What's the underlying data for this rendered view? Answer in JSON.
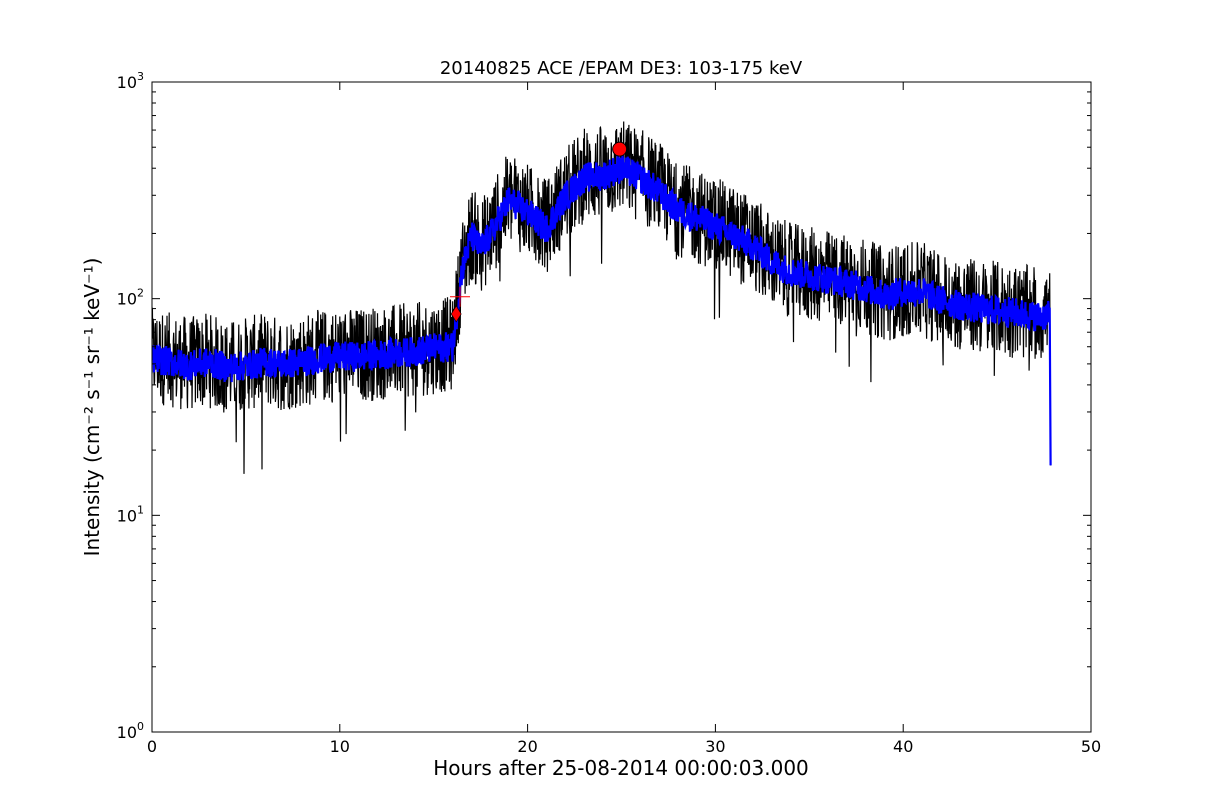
{
  "chart_data": {
    "type": "line",
    "title": "20140825 ACE /EPAM DE3: 103-175 keV",
    "xlabel": "Hours after 25-08-2014 00:00:03.000",
    "ylabel": "Intensity (cm⁻² s⁻¹ sr⁻¹ keV⁻¹)",
    "xlim": [
      0,
      50
    ],
    "ylim": [
      1,
      1000
    ],
    "yscale": "log",
    "grid": false,
    "x_ticks": [
      "0",
      "10",
      "20",
      "30",
      "40",
      "50"
    ],
    "y_ticks": [
      {
        "base": "10",
        "exp": "0"
      },
      {
        "base": "10",
        "exp": "1"
      },
      {
        "base": "10",
        "exp": "2"
      },
      {
        "base": "10",
        "exp": "3"
      }
    ],
    "series": [
      {
        "kind": "raw",
        "color": "#000000",
        "x": [
          0,
          1,
          2,
          3,
          4,
          5,
          6,
          7,
          8,
          9,
          10,
          11,
          12,
          13,
          14,
          15,
          16,
          16.2,
          16.5,
          17,
          17.5,
          18,
          19,
          20,
          21,
          22,
          23,
          24,
          25,
          26,
          27,
          28,
          29,
          30,
          31,
          32,
          33,
          34,
          35,
          36,
          37,
          38,
          39,
          40,
          41,
          42,
          43,
          44,
          45,
          46,
          47,
          47.8,
          47.85
        ],
        "y": [
          55,
          52,
          50,
          52,
          48,
          50,
          52,
          50,
          52,
          54,
          55,
          55,
          56,
          57,
          58,
          60,
          62,
          85,
          140,
          200,
          175,
          200,
          290,
          255,
          215,
          300,
          370,
          380,
          410,
          370,
          320,
          260,
          240,
          220,
          200,
          180,
          150,
          135,
          130,
          125,
          120,
          115,
          105,
          110,
          110,
          100,
          95,
          92,
          90,
          88,
          85,
          85,
          17
        ]
      },
      {
        "kind": "smoothed",
        "color": "#0000ff",
        "x": [
          0,
          1,
          2,
          3,
          4,
          5,
          6,
          7,
          8,
          9,
          10,
          11,
          12,
          13,
          14,
          15,
          16,
          16.2,
          16.5,
          17,
          17.5,
          18,
          19,
          20,
          21,
          22,
          23,
          24,
          25,
          26,
          27,
          28,
          29,
          30,
          31,
          32,
          33,
          34,
          35,
          36,
          37,
          38,
          39,
          40,
          41,
          42,
          43,
          44,
          45,
          46,
          47,
          47.8,
          47.85
        ],
        "y": [
          53,
          51,
          49,
          51,
          48,
          49,
          51,
          50,
          51,
          53,
          54,
          54,
          55,
          56,
          57,
          59,
          60,
          80,
          135,
          195,
          170,
          195,
          285,
          250,
          210,
          295,
          360,
          370,
          400,
          360,
          310,
          255,
          235,
          215,
          195,
          175,
          148,
          133,
          128,
          123,
          118,
          112,
          103,
          108,
          108,
          98,
          93,
          90,
          88,
          86,
          83,
          83,
          17
        ]
      }
    ],
    "markers": [
      {
        "shape": "diamond",
        "color": "#ff0000",
        "x": 16.2,
        "y": 85
      },
      {
        "shape": "plus",
        "color": "#ff0000",
        "x": 16.4,
        "y": 102
      },
      {
        "shape": "circle",
        "color": "#ff0000",
        "x": 24.9,
        "y": 490
      }
    ]
  }
}
